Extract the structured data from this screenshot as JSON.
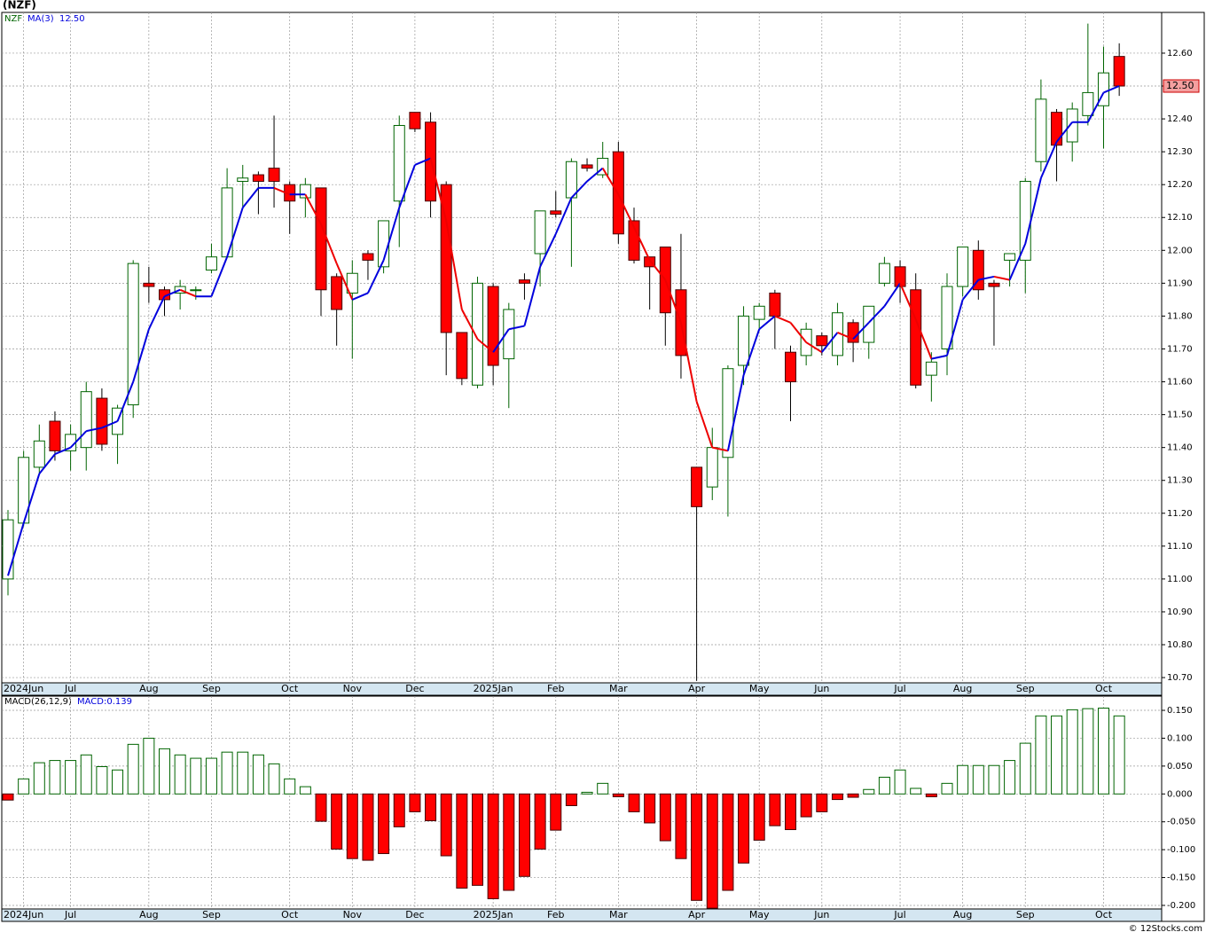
{
  "chart_data": [
    {
      "type": "candlestick",
      "title": "(NZF)",
      "symbol": "NZF",
      "last_price": {
        "value": 12.5,
        "label": "12.50"
      },
      "categories": [
        null,
        "2024Jun",
        null,
        null,
        "Jul",
        null,
        null,
        null,
        null,
        "Aug",
        null,
        null,
        null,
        "Sep",
        null,
        null,
        null,
        null,
        "Oct",
        null,
        null,
        null,
        "Nov",
        null,
        null,
        null,
        "Dec",
        null,
        null,
        null,
        null,
        "2025Jan",
        null,
        null,
        null,
        "Feb",
        null,
        null,
        null,
        "Mar",
        null,
        null,
        null,
        null,
        "Apr",
        null,
        null,
        null,
        "May",
        null,
        null,
        null,
        "Jun",
        null,
        null,
        null,
        null,
        "Jul",
        null,
        null,
        null,
        "Aug",
        null,
        null,
        null,
        "Sep",
        null,
        null,
        null,
        null,
        "Oct",
        null
      ],
      "open": [
        11.0,
        11.17,
        11.34,
        11.48,
        11.39,
        11.4,
        11.55,
        11.44,
        11.53,
        11.9,
        11.88,
        11.87,
        11.88,
        11.94,
        11.98,
        12.21,
        12.23,
        12.25,
        12.2,
        12.16,
        12.19,
        11.92,
        11.87,
        11.99,
        11.95,
        12.15,
        12.42,
        12.39,
        12.2,
        11.75,
        11.59,
        11.89,
        11.67,
        11.91,
        11.99,
        12.12,
        12.16,
        12.26,
        12.23,
        12.3,
        12.09,
        11.98,
        12.01,
        11.88,
        11.34,
        11.28,
        11.37,
        11.65,
        11.79,
        11.87,
        11.69,
        11.68,
        11.74,
        11.68,
        11.78,
        11.72,
        11.9,
        11.95,
        11.88,
        11.62,
        11.7,
        11.89,
        12.0,
        11.9,
        11.97,
        11.97,
        12.27,
        12.42,
        12.33,
        12.41,
        12.44,
        12.59
      ],
      "high": [
        11.21,
        11.39,
        11.47,
        11.51,
        11.47,
        11.6,
        11.58,
        11.53,
        11.97,
        11.95,
        11.89,
        11.91,
        11.89,
        12.02,
        12.25,
        12.26,
        12.24,
        12.41,
        12.21,
        12.22,
        12.19,
        11.93,
        11.97,
        12.0,
        12.09,
        12.41,
        12.42,
        12.42,
        12.21,
        11.75,
        11.92,
        11.9,
        11.84,
        11.93,
        12.12,
        12.18,
        12.28,
        12.28,
        12.33,
        12.33,
        12.13,
        11.98,
        12.01,
        12.05,
        11.34,
        11.46,
        11.65,
        11.83,
        11.84,
        11.88,
        11.71,
        11.78,
        11.75,
        11.84,
        11.79,
        11.83,
        11.98,
        11.97,
        11.93,
        11.69,
        11.93,
        12.01,
        12.03,
        11.91,
        11.99,
        12.22,
        12.52,
        12.43,
        12.45,
        12.69,
        12.62,
        12.63
      ],
      "low": [
        10.95,
        11.16,
        11.32,
        11.36,
        11.33,
        11.33,
        11.39,
        11.35,
        11.49,
        11.84,
        11.8,
        11.82,
        11.85,
        11.93,
        11.98,
        12.13,
        12.11,
        12.13,
        12.05,
        12.1,
        11.8,
        11.71,
        11.67,
        11.91,
        11.93,
        12.01,
        12.36,
        12.1,
        11.62,
        11.59,
        11.58,
        11.59,
        11.52,
        11.85,
        11.89,
        12.1,
        11.95,
        12.24,
        12.22,
        12.02,
        11.96,
        11.82,
        11.71,
        11.61,
        10.69,
        11.24,
        11.19,
        11.59,
        11.76,
        11.7,
        11.48,
        11.65,
        11.68,
        11.65,
        11.66,
        11.67,
        11.89,
        11.84,
        11.58,
        11.54,
        11.62,
        11.86,
        11.85,
        11.71,
        11.89,
        11.87,
        12.24,
        12.21,
        12.27,
        12.38,
        12.31,
        12.47
      ],
      "close": [
        11.18,
        11.37,
        11.42,
        11.39,
        11.44,
        11.57,
        11.41,
        11.52,
        11.96,
        11.89,
        11.85,
        11.89,
        11.88,
        11.98,
        12.19,
        12.22,
        12.21,
        12.21,
        12.15,
        12.2,
        11.88,
        11.82,
        11.93,
        11.97,
        12.09,
        12.38,
        12.37,
        12.15,
        11.75,
        11.61,
        11.9,
        11.65,
        11.82,
        11.9,
        12.12,
        12.11,
        12.27,
        12.25,
        12.28,
        12.05,
        11.97,
        11.95,
        11.81,
        11.68,
        11.22,
        11.4,
        11.64,
        11.8,
        11.83,
        11.8,
        11.6,
        11.76,
        11.71,
        11.81,
        11.72,
        11.83,
        11.96,
        11.89,
        11.59,
        11.66,
        11.89,
        12.01,
        11.88,
        11.89,
        11.99,
        12.21,
        12.46,
        12.32,
        12.43,
        12.48,
        12.54,
        12.5
      ],
      "up_color": "#006400",
      "down_color": "#ff0000",
      "ma": {
        "name": "MA(3)",
        "rise_color": "#0000dd",
        "fall_color": "#ee0000",
        "values": [
          11.01,
          11.17,
          11.32,
          11.38,
          11.4,
          11.45,
          11.46,
          11.48,
          11.6,
          11.76,
          11.86,
          11.88,
          11.86,
          11.86,
          11.98,
          12.13,
          12.19,
          12.19,
          12.17,
          12.17,
          12.08,
          11.96,
          11.85,
          11.87,
          11.97,
          12.13,
          12.26,
          12.28,
          12.09,
          11.82,
          11.73,
          11.69,
          11.76,
          11.77,
          11.95,
          12.05,
          12.16,
          12.21,
          12.25,
          12.17,
          12.07,
          11.97,
          11.91,
          11.78,
          11.54,
          11.4,
          11.39,
          11.62,
          11.76,
          11.8,
          11.78,
          11.72,
          11.69,
          11.75,
          11.73,
          11.78,
          11.83,
          11.9,
          11.79,
          11.67,
          11.68,
          11.85,
          11.91,
          11.92,
          11.91,
          12.02,
          12.22,
          12.33,
          12.39,
          12.39,
          12.48,
          12.5
        ]
      },
      "ylim": [
        10.684,
        12.724
      ],
      "yticks": [
        {
          "value": 10.7,
          "label": "10.70"
        },
        {
          "value": 10.8,
          "label": "10.80"
        },
        {
          "value": 10.9,
          "label": "10.90"
        },
        {
          "value": 11.0,
          "label": "11.00"
        },
        {
          "value": 11.1,
          "label": "11.10"
        },
        {
          "value": 11.2,
          "label": "11.20"
        },
        {
          "value": 11.3,
          "label": "11.30"
        },
        {
          "value": 11.4,
          "label": "11.40"
        },
        {
          "value": 11.5,
          "label": "11.50"
        },
        {
          "value": 11.6,
          "label": "11.60"
        },
        {
          "value": 11.7,
          "label": "11.70"
        },
        {
          "value": 11.8,
          "label": "11.80"
        },
        {
          "value": 11.9,
          "label": "11.90"
        },
        {
          "value": 12.0,
          "label": "12.00"
        },
        {
          "value": 12.1,
          "label": "12.10"
        },
        {
          "value": 12.2,
          "label": "12.20"
        },
        {
          "value": 12.3,
          "label": "12.30"
        },
        {
          "value": 12.4,
          "label": "12.40"
        },
        {
          "value": 12.5,
          "label": "12.50"
        },
        {
          "value": 12.6,
          "label": "12.60"
        }
      ],
      "grid": true
    },
    {
      "type": "bar",
      "title": "MACD(26,12,9)",
      "series_label": "MACD:0.139",
      "categories": [
        null,
        "2024Jun",
        null,
        null,
        "Jul",
        null,
        null,
        null,
        null,
        "Aug",
        null,
        null,
        null,
        "Sep",
        null,
        null,
        null,
        null,
        "Oct",
        null,
        null,
        null,
        "Nov",
        null,
        null,
        null,
        "Dec",
        null,
        null,
        null,
        null,
        "2025Jan",
        null,
        null,
        null,
        "Feb",
        null,
        null,
        null,
        "Mar",
        null,
        null,
        null,
        null,
        "Apr",
        null,
        null,
        null,
        "May",
        null,
        null,
        null,
        "Jun",
        null,
        null,
        null,
        null,
        "Jul",
        null,
        null,
        null,
        "Aug",
        null,
        null,
        null,
        "Sep",
        null,
        null,
        null,
        null,
        "Oct",
        null
      ],
      "values": [
        -0.011,
        0.027,
        0.056,
        0.06,
        0.06,
        0.07,
        0.049,
        0.043,
        0.089,
        0.1,
        0.081,
        0.07,
        0.064,
        0.064,
        0.075,
        0.075,
        0.07,
        0.054,
        0.027,
        0.013,
        -0.049,
        -0.099,
        -0.116,
        -0.119,
        -0.107,
        -0.059,
        -0.032,
        -0.048,
        -0.111,
        -0.169,
        -0.164,
        -0.188,
        -0.173,
        -0.148,
        -0.099,
        -0.065,
        -0.021,
        0.003,
        0.019,
        -0.005,
        -0.032,
        -0.052,
        -0.084,
        -0.116,
        -0.191,
        -0.205,
        -0.173,
        -0.124,
        -0.083,
        -0.057,
        -0.064,
        -0.041,
        -0.032,
        -0.01,
        -0.006,
        0.008,
        0.03,
        0.043,
        0.01,
        -0.005,
        0.019,
        0.051,
        0.051,
        0.051,
        0.06,
        0.091,
        0.14,
        0.14,
        0.151,
        0.153,
        0.154,
        0.14
      ],
      "positive_color": "#006400",
      "negative_color": "#ff0000",
      "ylim": [
        -0.2064,
        0.1755
      ],
      "yticks": [
        {
          "value": -0.2,
          "label": "-0.200"
        },
        {
          "value": -0.15,
          "label": "-0.150"
        },
        {
          "value": -0.1,
          "label": "-0.100"
        },
        {
          "value": -0.05,
          "label": "-0.050"
        },
        {
          "value": 0,
          "label": "0.000"
        },
        {
          "value": 0.05,
          "label": "0.050"
        },
        {
          "value": 0.1,
          "label": "0.100"
        },
        {
          "value": 0.15,
          "label": "0.150"
        }
      ],
      "grid": true
    },
    {
      "type": "note",
      "source": "© 12Stocks.com"
    }
  ]
}
